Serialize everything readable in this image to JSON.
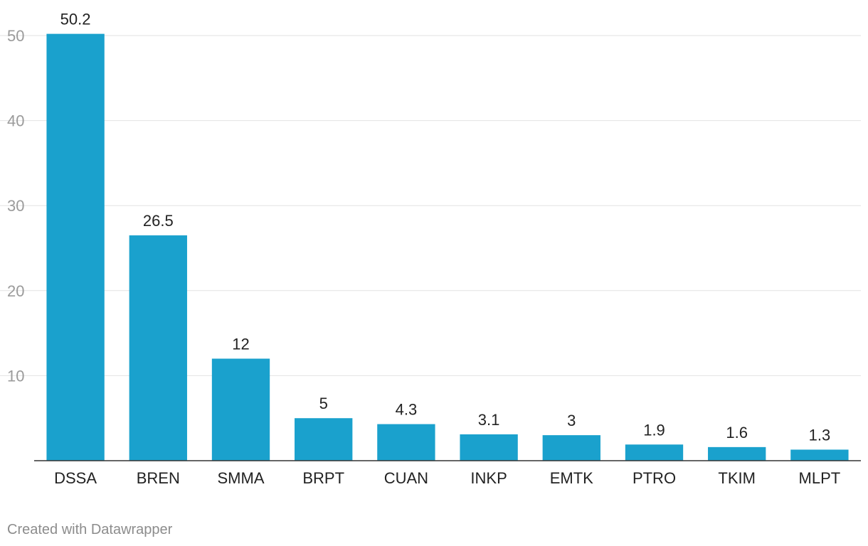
{
  "chart_data": {
    "type": "bar",
    "categories": [
      "DSSA",
      "BREN",
      "SMMA",
      "BRPT",
      "CUAN",
      "INKP",
      "EMTK",
      "PTRO",
      "TKIM",
      "MLPT"
    ],
    "values": [
      50.2,
      26.5,
      12,
      5,
      4.3,
      3.1,
      3,
      1.9,
      1.6,
      1.3
    ],
    "value_labels": [
      "50.2",
      "26.5",
      "12",
      "5",
      "4.3",
      "3.1",
      "3",
      "1.9",
      "1.6",
      "1.3"
    ],
    "y_ticks": [
      10,
      20,
      30,
      40,
      50
    ],
    "ylim": [
      0,
      50
    ],
    "grid": true,
    "bar_color": "#1aa1cd"
  },
  "footer": {
    "credit": "Created with Datawrapper"
  }
}
